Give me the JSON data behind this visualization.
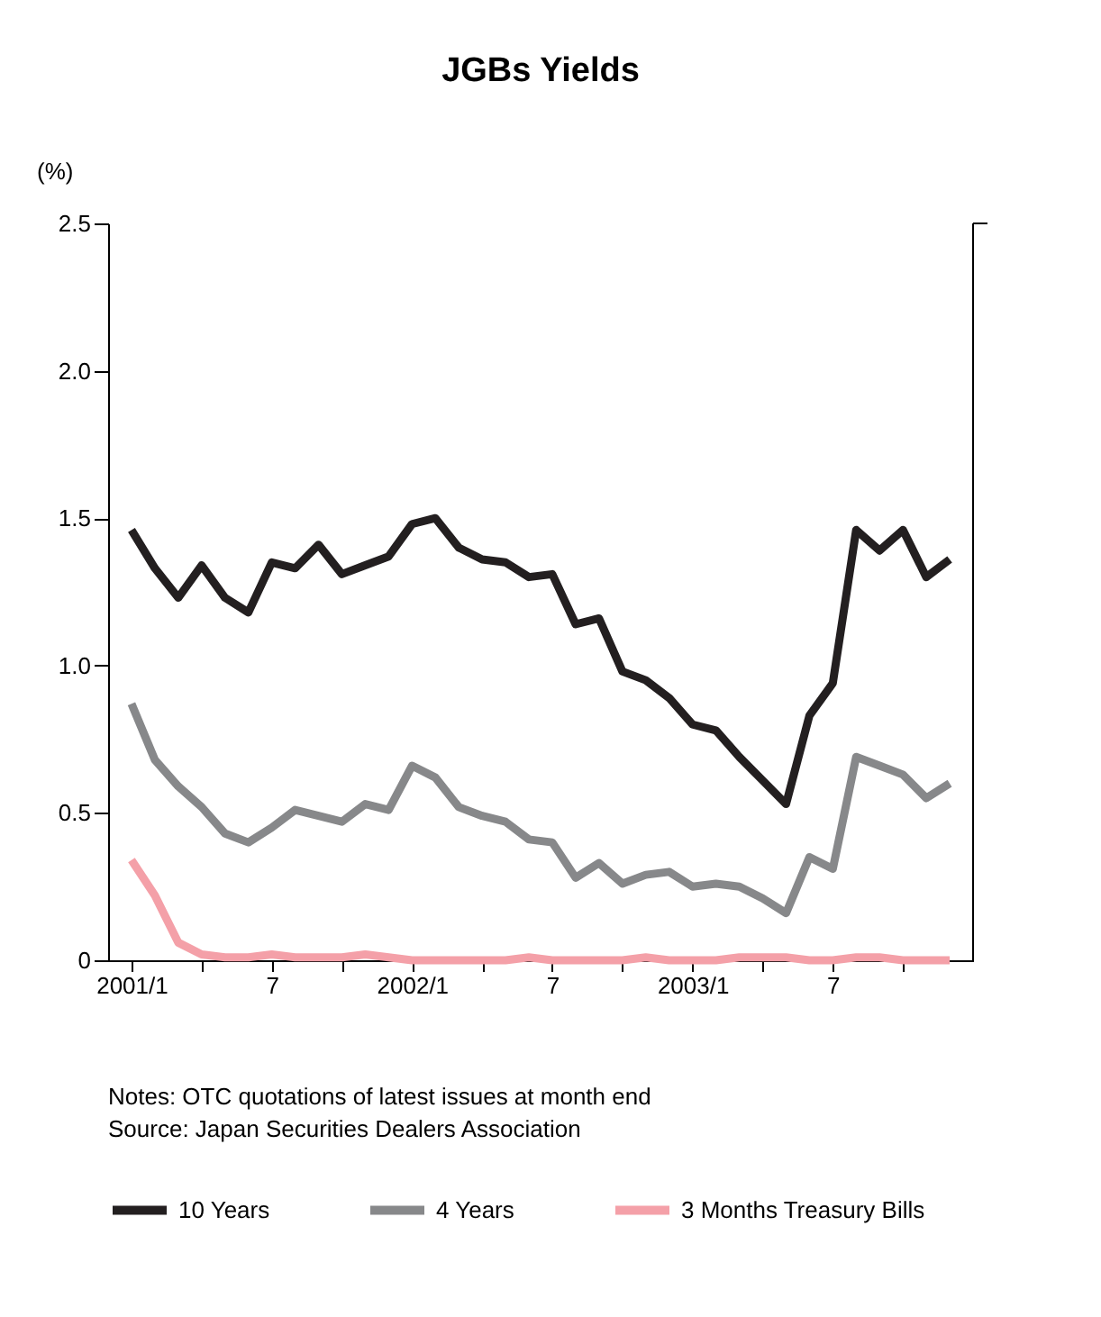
{
  "chart_data": {
    "type": "line",
    "title": "JGBs Yields",
    "ylabel": "(%)",
    "categories": [
      "2001/1",
      null,
      null,
      null,
      null,
      null,
      "7",
      null,
      null,
      null,
      null,
      null,
      "2002/1",
      null,
      null,
      null,
      null,
      null,
      "7",
      null,
      null,
      null,
      null,
      null,
      "2003/1",
      null,
      null,
      null,
      null,
      null,
      "7",
      null,
      null,
      null,
      null,
      null
    ],
    "series": [
      {
        "name": "10 Years",
        "color": "#231f20",
        "values": [
          1.46,
          1.33,
          1.23,
          1.34,
          1.23,
          1.18,
          1.35,
          1.33,
          1.41,
          1.31,
          1.34,
          1.37,
          1.48,
          1.5,
          1.4,
          1.36,
          1.35,
          1.3,
          1.31,
          1.14,
          1.16,
          0.98,
          0.95,
          0.89,
          0.8,
          0.78,
          0.69,
          0.61,
          0.53,
          0.83,
          0.94,
          1.46,
          1.39,
          1.46,
          1.3,
          1.36
        ]
      },
      {
        "name": "4 Years",
        "color": "#87888a",
        "values": [
          0.87,
          0.68,
          0.59,
          0.52,
          0.43,
          0.4,
          0.45,
          0.51,
          0.49,
          0.47,
          0.53,
          0.51,
          0.66,
          0.62,
          0.52,
          0.49,
          0.47,
          0.41,
          0.4,
          0.28,
          0.33,
          0.26,
          0.29,
          0.3,
          0.25,
          0.26,
          0.25,
          0.21,
          0.16,
          0.35,
          0.31,
          0.69,
          0.66,
          0.63,
          0.55,
          0.6
        ]
      },
      {
        "name": "3 Months Treasury Bills",
        "color": "#f4a0a8",
        "values": [
          0.34,
          0.22,
          0.06,
          0.02,
          0.01,
          0.01,
          0.02,
          0.01,
          0.01,
          0.01,
          0.02,
          0.01,
          0.0,
          0.0,
          0.0,
          0.0,
          0.0,
          0.01,
          0.0,
          0.0,
          0.0,
          0.0,
          0.01,
          0.0,
          0.0,
          0.0,
          0.01,
          0.01,
          0.01,
          0.0,
          0.0,
          0.01,
          0.01,
          0.0,
          0.0,
          0.0
        ]
      }
    ],
    "ylim": [
      0,
      2.5
    ],
    "yticks": [
      0,
      0.5,
      {
        "value": 1,
        "label": "1.0"
      },
      {
        "value": 1.5,
        "label": "1.5"
      },
      {
        "value": 2,
        "label": "2.0"
      },
      2.5
    ],
    "grid": false,
    "legend": "bottom",
    "line_style": "solid",
    "marker": "none",
    "annotations": [
      "Notes:   OTC quotations of latest issues at month end",
      "Source: Japan Securities Dealers Association"
    ]
  }
}
